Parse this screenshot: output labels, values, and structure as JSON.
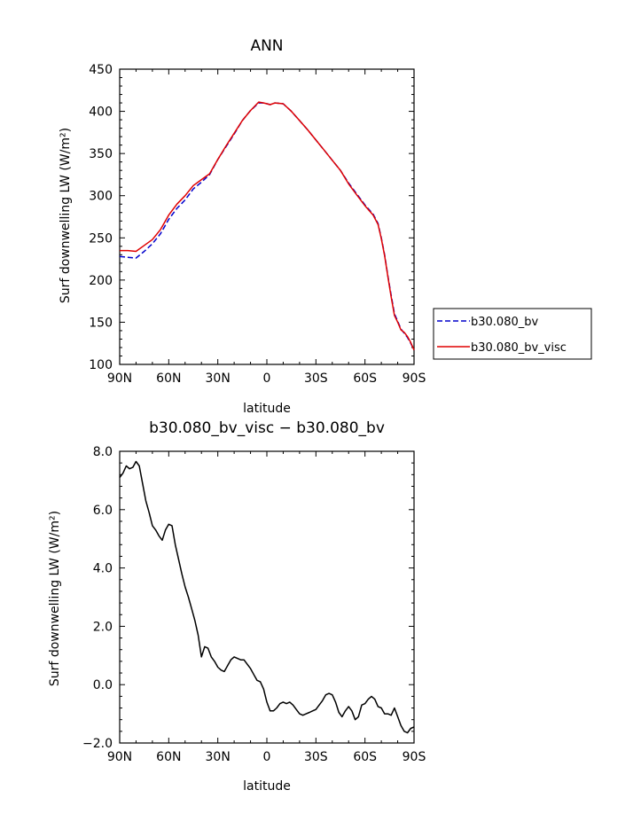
{
  "chart_data": [
    {
      "type": "line",
      "title": "ANN",
      "xlabel": "latitude",
      "ylabel": "Surf downwelling LW (W/m²)",
      "xlim": [
        90,
        -90
      ],
      "ylim": [
        100,
        450
      ],
      "x_tick_values": [
        90,
        60,
        30,
        0,
        -30,
        -60,
        -90
      ],
      "x_tick_labels": [
        "90N",
        "60N",
        "30N",
        "0",
        "30S",
        "60S",
        "90S"
      ],
      "y_tick_values": [
        100,
        150,
        200,
        250,
        300,
        350,
        400,
        450
      ],
      "y_tick_labels": [
        "100",
        "150",
        "200",
        "250",
        "300",
        "350",
        "400",
        "450"
      ],
      "grid": false,
      "legend_placement": "right",
      "x": [
        90,
        85,
        80,
        75,
        70,
        65,
        60,
        55,
        50,
        45,
        40,
        35,
        30,
        25,
        20,
        15,
        10,
        5,
        2,
        0,
        -2,
        -5,
        -10,
        -15,
        -20,
        -25,
        -30,
        -35,
        -40,
        -45,
        -50,
        -55,
        -60,
        -65,
        -68,
        -70,
        -72,
        -74,
        -76,
        -78,
        -80,
        -82,
        -84,
        -86,
        -88,
        -90
      ],
      "series": [
        {
          "name": "b30.080_bv",
          "color": "#0000cc",
          "dash": "dashed",
          "values": [
            228,
            227,
            226,
            234,
            243,
            255,
            272,
            285,
            295,
            308,
            316,
            325,
            343,
            358,
            373,
            389,
            401,
            410,
            410,
            409,
            408,
            410,
            409,
            400,
            389,
            378,
            366,
            354,
            342,
            330,
            315,
            302,
            289,
            278,
            267,
            250,
            230,
            205,
            182,
            160,
            151,
            142,
            137,
            132,
            125,
            117
          ]
        },
        {
          "name": "b30.080_bv_visc",
          "color": "#e00000",
          "dash": "solid",
          "values": [
            235,
            235,
            234,
            241,
            248,
            260,
            277,
            290,
            300,
            312,
            319,
            326,
            343,
            359,
            374,
            389,
            401,
            411,
            410,
            409,
            408,
            410,
            409,
            400,
            389,
            378,
            366,
            354,
            342,
            330,
            314,
            301,
            288,
            277,
            266,
            249,
            229,
            204,
            180,
            158,
            150,
            141,
            138,
            133,
            126,
            117
          ]
        }
      ]
    },
    {
      "type": "line",
      "title": "b30.080_bv_visc − b30.080_bv",
      "xlabel": "latitude",
      "ylabel": "Surf downwelling LW (W/m²)",
      "xlim": [
        90,
        -90
      ],
      "ylim": [
        -2,
        8
      ],
      "x_tick_values": [
        90,
        60,
        30,
        0,
        -30,
        -60,
        -90
      ],
      "x_tick_labels": [
        "90N",
        "60N",
        "30N",
        "0",
        "30S",
        "60S",
        "90S"
      ],
      "y_tick_values": [
        -2,
        0,
        2,
        4,
        6,
        8
      ],
      "y_tick_labels": [
        "−2.0",
        "0.0",
        "2.0",
        "4.0",
        "6.0",
        "8.0"
      ],
      "grid": false,
      "x": [
        90,
        88,
        86,
        84,
        82,
        80,
        78,
        76,
        74,
        72,
        70,
        68,
        66,
        64,
        62,
        60,
        58,
        56,
        54,
        52,
        50,
        48,
        46,
        44,
        42,
        40,
        38,
        36,
        34,
        32,
        30,
        28,
        26,
        24,
        22,
        20,
        18,
        16,
        14,
        12,
        10,
        8,
        6,
        4,
        2,
        0,
        -2,
        -4,
        -6,
        -8,
        -10,
        -12,
        -14,
        -16,
        -18,
        -20,
        -22,
        -24,
        -26,
        -28,
        -30,
        -32,
        -34,
        -36,
        -38,
        -40,
        -42,
        -44,
        -46,
        -48,
        -50,
        -52,
        -54,
        -56,
        -58,
        -60,
        -62,
        -64,
        -66,
        -68,
        -70,
        -72,
        -74,
        -76,
        -78,
        -80,
        -82,
        -84,
        -86,
        -88,
        -90
      ],
      "series": [
        {
          "name": "",
          "color": "#000000",
          "dash": "solid",
          "values": [
            7.1,
            7.25,
            7.5,
            7.4,
            7.45,
            7.65,
            7.5,
            6.9,
            6.3,
            5.9,
            5.45,
            5.3,
            5.1,
            4.95,
            5.3,
            5.5,
            5.45,
            4.8,
            4.3,
            3.8,
            3.35,
            3.0,
            2.6,
            2.2,
            1.7,
            0.95,
            1.3,
            1.25,
            0.95,
            0.8,
            0.6,
            0.5,
            0.45,
            0.65,
            0.85,
            0.95,
            0.9,
            0.85,
            0.85,
            0.7,
            0.55,
            0.35,
            0.15,
            0.1,
            -0.15,
            -0.6,
            -0.9,
            -0.9,
            -0.8,
            -0.65,
            -0.6,
            -0.65,
            -0.6,
            -0.7,
            -0.85,
            -1.0,
            -1.05,
            -1.0,
            -0.95,
            -0.9,
            -0.85,
            -0.7,
            -0.55,
            -0.35,
            -0.3,
            -0.35,
            -0.6,
            -0.95,
            -1.1,
            -0.9,
            -0.75,
            -0.9,
            -1.2,
            -1.1,
            -0.7,
            -0.65,
            -0.5,
            -0.4,
            -0.5,
            -0.75,
            -0.8,
            -1.0,
            -1.0,
            -1.05,
            -0.8,
            -1.1,
            -1.4,
            -1.6,
            -1.65,
            -1.5,
            -1.45
          ]
        }
      ]
    }
  ]
}
